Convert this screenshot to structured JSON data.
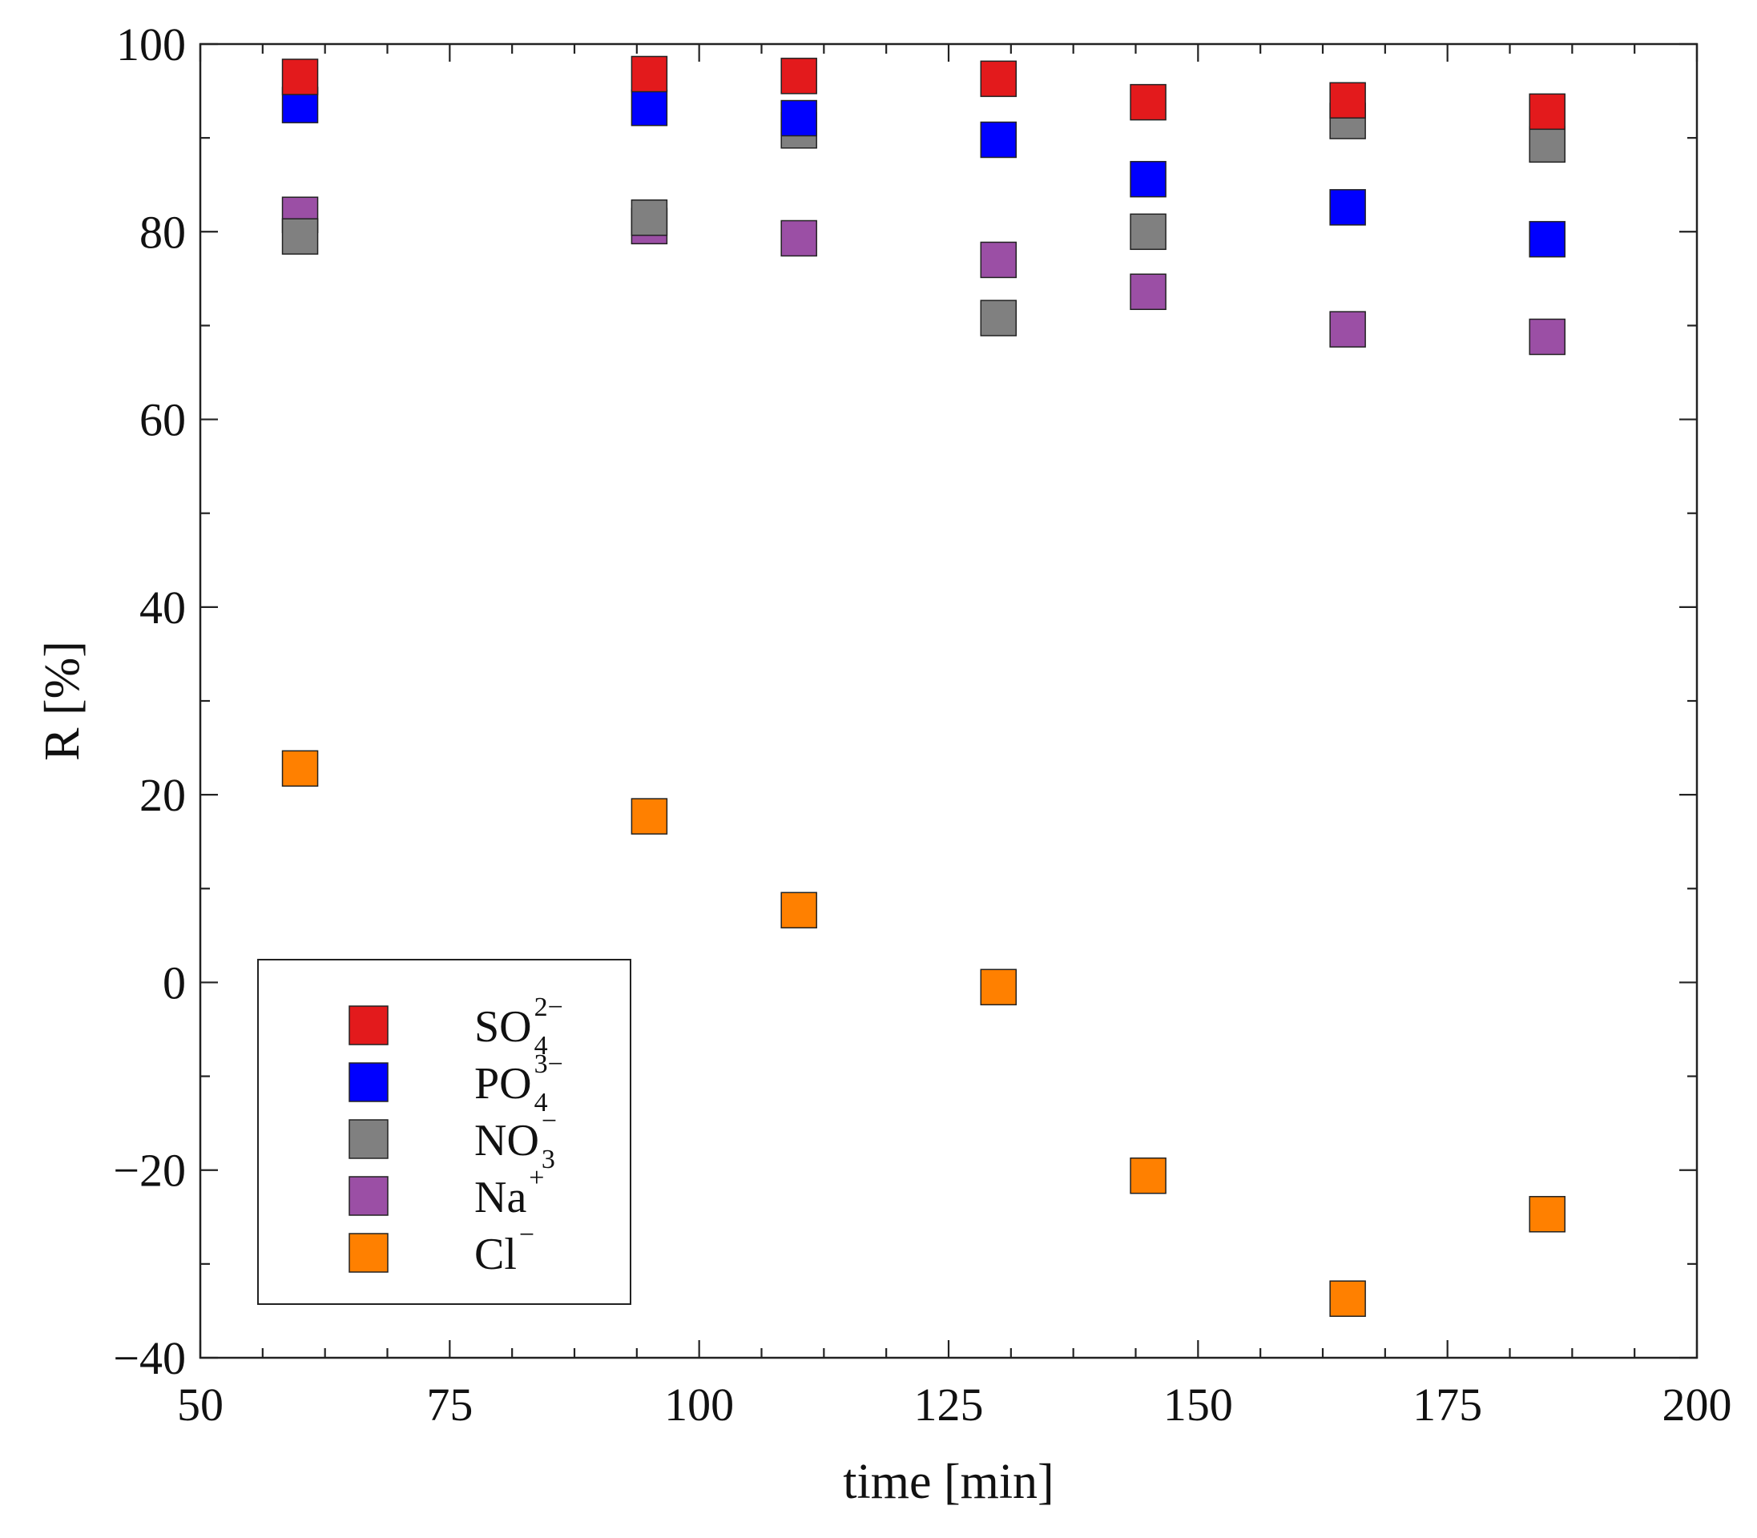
{
  "chart_data": {
    "type": "scatter",
    "title": "",
    "xlabel": "time [min]",
    "ylabel": "R [%]",
    "xlim": [
      50,
      200
    ],
    "ylim": [
      -40,
      100
    ],
    "xticks": [
      50,
      75,
      100,
      125,
      150,
      175,
      200
    ],
    "yticks": [
      -40,
      -20,
      0,
      20,
      40,
      60,
      80,
      100
    ],
    "grid": false,
    "legend_position": "bottom-left",
    "x": [
      60,
      95,
      110,
      130,
      145,
      165,
      185
    ],
    "series": [
      {
        "name": "SO4 2-",
        "label_base": "SO",
        "label_sub": "4",
        "label_sup": "2−",
        "color": "#e31a1c",
        "values": [
          96.5,
          96.8,
          96.6,
          96.3,
          93.8,
          94.0,
          92.8
        ]
      },
      {
        "name": "PO4 3-",
        "label_base": "PO",
        "label_sub": "4",
        "label_sup": "3−",
        "color": "#0000ff",
        "values": [
          93.5,
          93.2,
          92.1,
          89.8,
          85.6,
          82.6,
          79.2
        ]
      },
      {
        "name": "NO3 -",
        "label_base": "NO",
        "label_sub": "3",
        "label_sup": "−",
        "color": "#808080",
        "values": [
          79.5,
          81.5,
          90.8,
          70.8,
          80.0,
          91.8,
          89.3
        ]
      },
      {
        "name": "Na +",
        "label_base": "Na",
        "label_sub": "",
        "label_sup": "+",
        "color": "#9b4fa5",
        "values": [
          81.8,
          80.6,
          79.3,
          77.0,
          73.6,
          69.6,
          68.8
        ]
      },
      {
        "name": "Cl -",
        "label_base": "Cl",
        "label_sub": "",
        "label_sup": "−",
        "color": "#ff8000",
        "values": [
          22.8,
          17.7,
          7.7,
          -0.5,
          -20.6,
          -33.7,
          -24.7
        ]
      }
    ],
    "draw_order": [
      4,
      3,
      2,
      1,
      0
    ]
  }
}
